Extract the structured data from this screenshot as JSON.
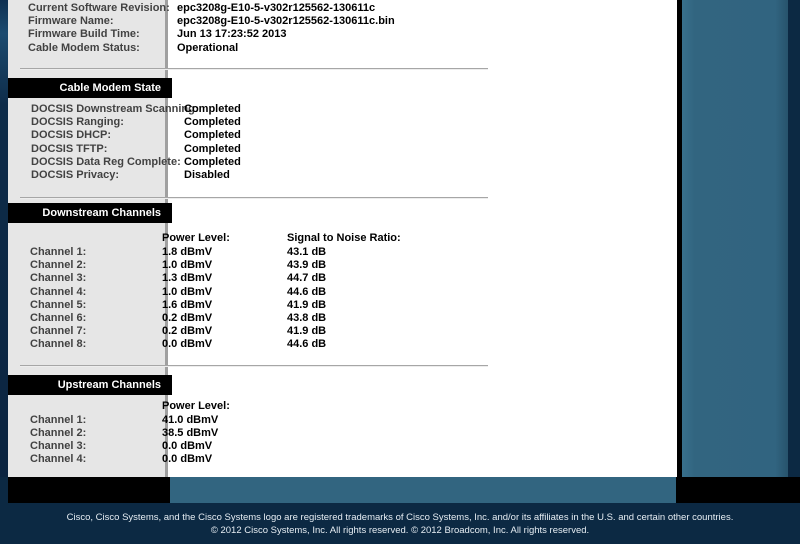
{
  "sidebar": {
    "sections": [
      {
        "label": "Cable Modem State"
      },
      {
        "label": "Downstream Channels"
      },
      {
        "label": "Upstream Channels"
      }
    ]
  },
  "about": {
    "rows": [
      {
        "label": "Current Software Revision:",
        "value": "epc3208g-E10-5-v302r125562-130611c"
      },
      {
        "label": "Firmware Name:",
        "value": "epc3208g-E10-5-v302r125562-130611c.bin"
      },
      {
        "label": "Firmware Build Time:",
        "value": "Jun 13 17:23:52 2013"
      },
      {
        "label": "Cable Modem Status:",
        "value": "Operational"
      }
    ]
  },
  "docsis": {
    "rows": [
      {
        "label": "DOCSIS Downstream Scanning:",
        "value": "Completed"
      },
      {
        "label": "DOCSIS Ranging:",
        "value": "Completed"
      },
      {
        "label": "DOCSIS DHCP:",
        "value": "Completed"
      },
      {
        "label": "DOCSIS TFTP:",
        "value": "Completed"
      },
      {
        "label": "DOCSIS Data Reg Complete:",
        "value": "Completed"
      },
      {
        "label": "DOCSIS Privacy:",
        "value": "Disabled"
      }
    ]
  },
  "downstream": {
    "power_header": "Power Level:",
    "snr_header": "Signal to Noise Ratio:",
    "rows": [
      {
        "label": "Channel 1:",
        "power": "1.8 dBmV",
        "snr": "43.1 dB"
      },
      {
        "label": "Channel 2:",
        "power": "1.0 dBmV",
        "snr": "43.9 dB"
      },
      {
        "label": "Channel 3:",
        "power": "1.3 dBmV",
        "snr": "44.7 dB"
      },
      {
        "label": "Channel 4:",
        "power": "1.0 dBmV",
        "snr": "44.6 dB"
      },
      {
        "label": "Channel 5:",
        "power": "1.6 dBmV",
        "snr": "41.9 dB"
      },
      {
        "label": "Channel 6:",
        "power": "0.2 dBmV",
        "snr": "43.8 dB"
      },
      {
        "label": "Channel 7:",
        "power": "0.2 dBmV",
        "snr": "41.9 dB"
      },
      {
        "label": "Channel 8:",
        "power": "0.0 dBmV",
        "snr": "44.6 dB"
      }
    ]
  },
  "upstream": {
    "power_header": "Power Level:",
    "rows": [
      {
        "label": "Channel 1:",
        "power": "41.0 dBmV"
      },
      {
        "label": "Channel 2:",
        "power": "38.5 dBmV"
      },
      {
        "label": "Channel 3:",
        "power": "0.0 dBmV"
      },
      {
        "label": "Channel 4:",
        "power": "0.0 dBmV"
      }
    ]
  },
  "footer": {
    "line1": "Cisco, Cisco Systems, and the Cisco Systems logo are registered trademarks of Cisco Systems, Inc. and/or its affiliates in the U.S. and certain other countries.",
    "line2": "© 2012 Cisco Systems, Inc. All rights reserved. © 2012 Broadcom, Inc. All rights reserved."
  },
  "colors": {
    "navy": "#0c2943",
    "teal": "#326580",
    "sidebar_gray": "#e6e6e6",
    "bar_black": "#000000"
  }
}
